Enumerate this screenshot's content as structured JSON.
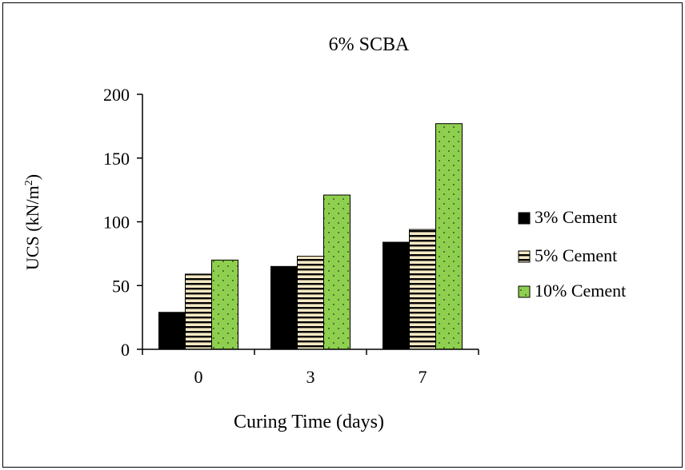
{
  "chart_data": {
    "type": "bar",
    "title": "6% SCBA",
    "xlabel": "Curing Time (days)",
    "ylabel": "UCS (kN/m²)",
    "ylabel_main": "UCS (kN/m",
    "ylabel_sup": "2",
    "ylabel_close": ")",
    "categories": [
      "0",
      "3",
      "7"
    ],
    "ylim": [
      0,
      200
    ],
    "yticks": [
      "0",
      "50",
      "100",
      "150",
      "200"
    ],
    "grid": false,
    "legend_position": "right",
    "series": [
      {
        "name": "3% Cement",
        "values": [
          29,
          65,
          84
        ],
        "color": "#000000",
        "pattern": "solid"
      },
      {
        "name": "5% Cement",
        "values": [
          59,
          73,
          94
        ],
        "color": "#f5e9c4",
        "pattern": "horizontal-stripes"
      },
      {
        "name": "10% Cement",
        "values": [
          70,
          121,
          177
        ],
        "color": "#8fcf4f",
        "pattern": "dots"
      }
    ]
  }
}
